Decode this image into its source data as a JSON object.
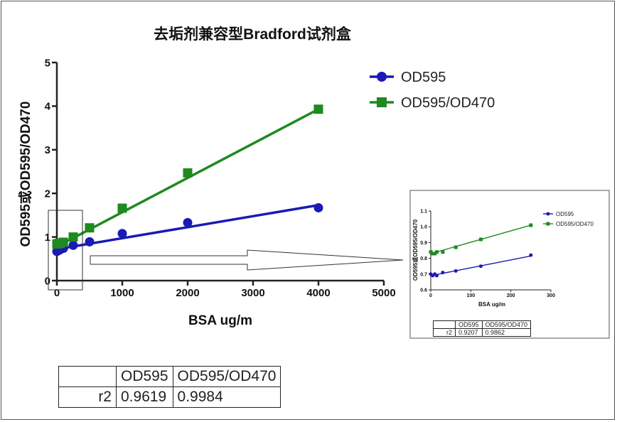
{
  "colors": {
    "od595": "#1a1ab4",
    "ratio": "#1f8a1f",
    "axis": "#222222"
  },
  "chart_data": [
    {
      "type": "scatter",
      "title": "去垢剂兼容型Bradford试剂盒",
      "xlabel": "BSA ug/m",
      "ylabel": "OD595或OD595/OD470",
      "xlim": [
        0,
        5000
      ],
      "ylim": [
        0,
        5
      ],
      "xticks": [
        "0",
        "1000",
        "2000",
        "3000",
        "4000",
        "5000"
      ],
      "yticks": [
        "0",
        "1",
        "2",
        "3",
        "4",
        "5"
      ],
      "legend_position": "top-right",
      "series": [
        {
          "name": "OD595",
          "marker": "circle",
          "x": [
            0,
            25,
            50,
            100,
            250,
            500,
            1000,
            2000,
            4000
          ],
          "y": [
            0.67,
            0.69,
            0.71,
            0.74,
            0.81,
            0.89,
            1.08,
            1.33,
            1.67
          ],
          "fit": [
            0.72,
            1.73
          ]
        },
        {
          "name": "OD595/OD470",
          "marker": "square",
          "x": [
            0,
            25,
            50,
            100,
            250,
            500,
            1000,
            2000,
            4000
          ],
          "y": [
            0.84,
            0.85,
            0.86,
            0.88,
            1.0,
            1.21,
            1.66,
            2.47,
            3.93
          ],
          "fit": [
            0.78,
            3.93
          ]
        }
      ],
      "table": {
        "headers": [
          "",
          "OD595",
          "OD595/OD470"
        ],
        "rows": [
          [
            "r2",
            "0.9619",
            "0.9984"
          ]
        ]
      }
    },
    {
      "type": "scatter",
      "xlabel": "BSA ug/m",
      "ylabel": "OD595或OD595/OD470",
      "xlim": [
        0,
        300
      ],
      "ylim": [
        0.6,
        1.1
      ],
      "xticks": [
        "0",
        "100",
        "200",
        "300"
      ],
      "yticks": [
        "0.6",
        "0.7",
        "0.8",
        "0.9",
        "1.0",
        "1.1"
      ],
      "legend_position": "top-right",
      "series": [
        {
          "name": "OD595",
          "marker": "circle",
          "x": [
            0,
            5,
            10,
            15,
            30,
            62.5,
            125,
            250
          ],
          "y": [
            0.7,
            0.69,
            0.7,
            0.69,
            0.71,
            0.72,
            0.75,
            0.82
          ],
          "fit": [
            0.69,
            0.815
          ]
        },
        {
          "name": "OD595/OD470",
          "marker": "square",
          "x": [
            0,
            5,
            10,
            15,
            30,
            62.5,
            125,
            250
          ],
          "y": [
            0.84,
            0.83,
            0.83,
            0.84,
            0.84,
            0.87,
            0.92,
            1.01
          ],
          "fit": [
            0.83,
            1.01
          ]
        }
      ],
      "table": {
        "headers": [
          "",
          "OD595",
          "OD595/OD470"
        ],
        "rows": [
          [
            "r2",
            "0.9207",
            "0.9862"
          ]
        ]
      }
    }
  ]
}
